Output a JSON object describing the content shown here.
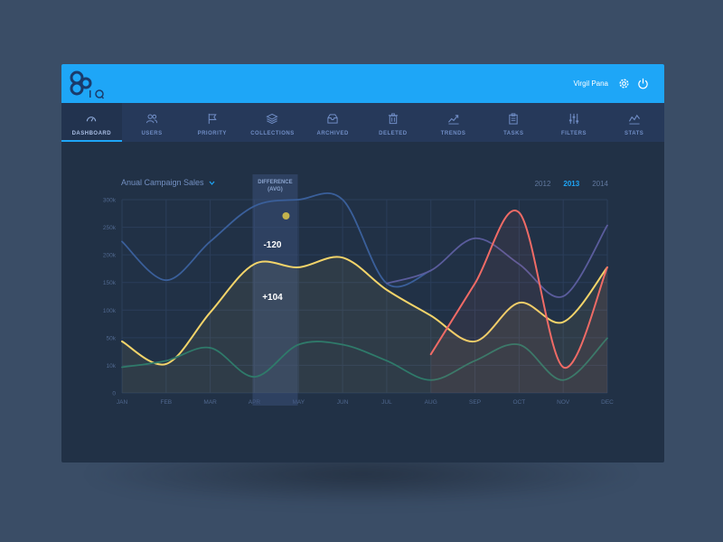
{
  "header": {
    "user_name": "Virgil Pana",
    "logo_text": "IQ"
  },
  "nav": [
    {
      "label": "DASHBOARD",
      "icon": "gauge-icon",
      "active": true
    },
    {
      "label": "USERS",
      "icon": "users-icon"
    },
    {
      "label": "PRIORITY",
      "icon": "flag-icon"
    },
    {
      "label": "COLLECTIONS",
      "icon": "layers-icon"
    },
    {
      "label": "ARCHIVED",
      "icon": "inbox-icon"
    },
    {
      "label": "DELETED",
      "icon": "trash-icon"
    },
    {
      "label": "TRENDS",
      "icon": "trend-icon"
    },
    {
      "label": "TASKS",
      "icon": "clipboard-icon"
    },
    {
      "label": "FILTERS",
      "icon": "sliders-icon"
    },
    {
      "label": "STATS",
      "icon": "stats-icon"
    }
  ],
  "colors": {
    "accent": "#1ea6f7",
    "series_blue": "#3a5f9a",
    "series_yellow": "#f3d46a",
    "series_green": "#2f7a6a",
    "series_purple": "#5a5c9c",
    "series_red": "#f06b66",
    "marker": "#c3b34d"
  },
  "chart_data": {
    "type": "line",
    "title": "Anual Campaign Sales",
    "years": [
      "2012",
      "2013",
      "2014"
    ],
    "selected_year": "2013",
    "categories": [
      "JAN",
      "FEB",
      "MAR",
      "APR",
      "MAY",
      "JUN",
      "JUL",
      "AUG",
      "SEP",
      "OCT",
      "NOV",
      "DEC"
    ],
    "y_ticks": [
      "0",
      "10k",
      "50k",
      "100k",
      "150k",
      "200k",
      "250k",
      "300k"
    ],
    "grid": true,
    "difference": {
      "label_line1": "DIFFERENCE",
      "label_line2": "(AVG)",
      "upper": "-120",
      "lower": "+104",
      "month_index": 3
    },
    "series": [
      {
        "color": "blue",
        "values": [
          235,
          175,
          235,
          290,
          300,
          300,
          170,
          190,
          240,
          200,
          150,
          260
        ]
      },
      {
        "color": "yellow",
        "values": [
          80,
          45,
          125,
          200,
          195,
          210,
          160,
          120,
          80,
          140,
          110,
          195
        ]
      },
      {
        "color": "green",
        "values": [
          40,
          50,
          70,
          25,
          75,
          75,
          50,
          20,
          50,
          75,
          20,
          85
        ]
      },
      {
        "color": "purple",
        "values": [
          235,
          175,
          235,
          290,
          300,
          300,
          170,
          190,
          240,
          200,
          150,
          260
        ]
      },
      {
        "color": "red",
        "values": [
          null,
          null,
          null,
          null,
          null,
          null,
          null,
          60,
          170,
          280,
          40,
          195
        ]
      }
    ]
  }
}
